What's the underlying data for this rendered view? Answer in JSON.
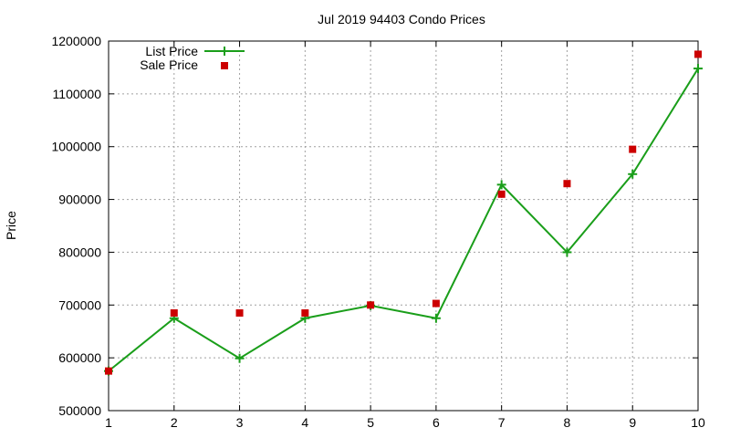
{
  "chart_data": {
    "type": "line",
    "title": "Jul 2019 94403 Condo Prices",
    "xlabel": "",
    "ylabel": "Price",
    "x": [
      1,
      2,
      3,
      4,
      5,
      6,
      7,
      8,
      9,
      10
    ],
    "xlim": [
      1,
      10
    ],
    "ylim": [
      500000,
      1200000
    ],
    "xticks": [
      "1",
      "2",
      "3",
      "4",
      "5",
      "6",
      "7",
      "8",
      "9",
      "10"
    ],
    "yticks": [
      "500000",
      "600000",
      "700000",
      "800000",
      "900000",
      "1000000",
      "1100000",
      "1200000"
    ],
    "grid": true,
    "legend_position": "top-left",
    "series": [
      {
        "name": "List Price",
        "style": "line+cross",
        "color": "#1a9e1a",
        "values": [
          575000,
          675000,
          599000,
          675000,
          699000,
          675000,
          928000,
          800000,
          948000,
          1148000
        ]
      },
      {
        "name": "Sale Price",
        "style": "square-points",
        "color": "#cc0000",
        "values": [
          575000,
          685000,
          685000,
          685000,
          700000,
          703000,
          910000,
          930000,
          995000,
          1175000
        ]
      }
    ]
  }
}
